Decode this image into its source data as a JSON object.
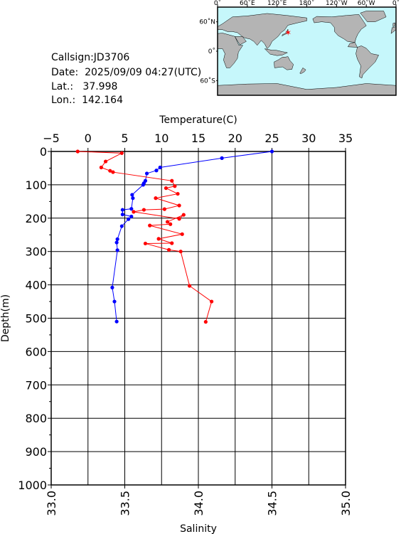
{
  "station": {
    "callsign": "Callsign:JD3706",
    "date_label": "Date:",
    "date_value": "2025/09/09 04:27(UTC)",
    "lat_label": "Lat.:",
    "lat_value": "37.998",
    "lon_label": "Lon.:",
    "lon_value": "142.164"
  },
  "map": {
    "lon_labels": [
      "0˚",
      "60˚E",
      "120˚E",
      "180˚",
      "120˚W",
      "60˚W",
      "0˚"
    ],
    "lat_labels": [
      "60˚N",
      "0˚",
      "60˚S"
    ],
    "ocean_color": "#c6f7fb",
    "land_color": "#b4b4b4",
    "marker": {
      "lon": 142.164,
      "lat": 37.998,
      "color": "#ff0000"
    }
  },
  "chart_data": {
    "type": "line",
    "title": "",
    "ylabel": "Depth(m)",
    "ylim": [
      1000,
      0
    ],
    "yticks": [
      "0",
      "100",
      "200",
      "300",
      "400",
      "500",
      "600",
      "700",
      "800",
      "900",
      "1000"
    ],
    "temperature_axis": {
      "label": "Temperature(C)",
      "range": [
        -5,
        35
      ],
      "ticks": [
        "−5",
        "0",
        "5",
        "10",
        "15",
        "20",
        "25",
        "30",
        "35"
      ]
    },
    "salinity_axis": {
      "label": "Salinity",
      "range": [
        33.0,
        35.0
      ],
      "ticks": [
        "33.0",
        "33.5",
        "34.0",
        "34.5",
        "35.0"
      ]
    },
    "grid": true,
    "series": [
      {
        "axis": "temperature",
        "color": "#0000ff",
        "points": [
          [
            25.0,
            0
          ],
          [
            18.2,
            20
          ],
          [
            9.8,
            48
          ],
          [
            9.3,
            57
          ],
          [
            8.0,
            66
          ],
          [
            7.8,
            88
          ],
          [
            7.6,
            95
          ],
          [
            7.5,
            100
          ],
          [
            6.0,
            130
          ],
          [
            6.1,
            140
          ],
          [
            5.9,
            172
          ],
          [
            4.7,
            175
          ],
          [
            4.7,
            189
          ],
          [
            5.9,
            195
          ],
          [
            5.5,
            203
          ],
          [
            4.6,
            224
          ],
          [
            4.0,
            263
          ],
          [
            3.9,
            273
          ],
          [
            4.0,
            296
          ],
          [
            3.3,
            408
          ],
          [
            3.6,
            450
          ],
          [
            3.9,
            510
          ]
        ]
      },
      {
        "axis": "salinity",
        "color": "#ff0000",
        "points": [
          [
            33.18,
            0
          ],
          [
            33.48,
            5
          ],
          [
            33.37,
            30
          ],
          [
            33.34,
            48
          ],
          [
            33.4,
            58
          ],
          [
            33.42,
            62
          ],
          [
            33.82,
            88
          ],
          [
            33.84,
            104
          ],
          [
            33.78,
            110
          ],
          [
            33.86,
            127
          ],
          [
            33.71,
            140
          ],
          [
            33.87,
            162
          ],
          [
            33.77,
            173
          ],
          [
            33.63,
            175
          ],
          [
            33.56,
            181
          ],
          [
            33.87,
            202
          ],
          [
            33.9,
            190
          ],
          [
            33.79,
            211
          ],
          [
            33.81,
            218
          ],
          [
            33.67,
            222
          ],
          [
            33.89,
            248
          ],
          [
            33.73,
            262
          ],
          [
            33.82,
            275
          ],
          [
            33.64,
            276
          ],
          [
            33.8,
            295
          ],
          [
            33.88,
            300
          ],
          [
            33.94,
            403
          ],
          [
            34.09,
            450
          ],
          [
            34.05,
            511
          ]
        ]
      }
    ]
  }
}
